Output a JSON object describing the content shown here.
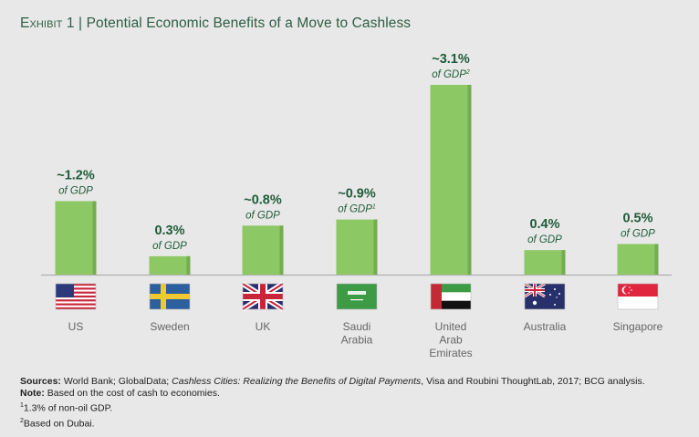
{
  "header": {
    "exhibit": "Exhibit 1",
    "separator": "|",
    "title": "Potential Economic Benefits of a Move to Cashless"
  },
  "chart_data": {
    "type": "bar",
    "title": "Potential Economic Benefits of a Move to Cashless",
    "unit": "% of GDP",
    "categories": [
      "US",
      "Sweden",
      "UK",
      "Saudi Arabia",
      "United Arab Emirates",
      "Australia",
      "Singapore"
    ],
    "category_lines": [
      [
        "US"
      ],
      [
        "Sweden"
      ],
      [
        "UK"
      ],
      [
        "Saudi",
        "Arabia"
      ],
      [
        "United",
        "Arab",
        "Emirates"
      ],
      [
        "Australia"
      ],
      [
        "Singapore"
      ]
    ],
    "values": [
      1.2,
      0.3,
      0.8,
      0.9,
      3.1,
      0.4,
      0.5
    ],
    "value_labels": [
      "~1.2%",
      "0.3%",
      "~0.8%",
      "~0.9%",
      "~3.1%",
      "0.4%",
      "0.5%"
    ],
    "sub_label": "of GDP",
    "footnote_marks": [
      "",
      "",
      "",
      "1",
      "2",
      "",
      ""
    ],
    "flags": [
      "us-flag",
      "sweden-flag",
      "uk-flag",
      "saudi-arabia-flag",
      "uae-flag",
      "australia-flag",
      "singapore-flag"
    ],
    "xlabel": "",
    "ylabel": "",
    "ylim": [
      0,
      3.2
    ],
    "grid": false,
    "legend": "none"
  },
  "colors": {
    "bar": "#8cc864",
    "bar_edge": "#74ad50",
    "label": "#1f5c3a",
    "axis": "#b0b0b0",
    "title": "#2e5e45"
  },
  "notes": {
    "sources_label": "Sources:",
    "sources_pre": "World Bank; GlobalData;",
    "sources_italic": "Cashless Cities: Realizing the Benefits of Digital Payments",
    "sources_post": ", Visa and Roubini ThoughtLab, 2017; BCG analysis.",
    "note_label": "Note:",
    "note_text": "Based on the cost of cash to economies.",
    "fn1_mark": "1",
    "fn1_text": "1.3% of non-oil GDP.",
    "fn2_mark": "2",
    "fn2_text": "Based on Dubai."
  }
}
